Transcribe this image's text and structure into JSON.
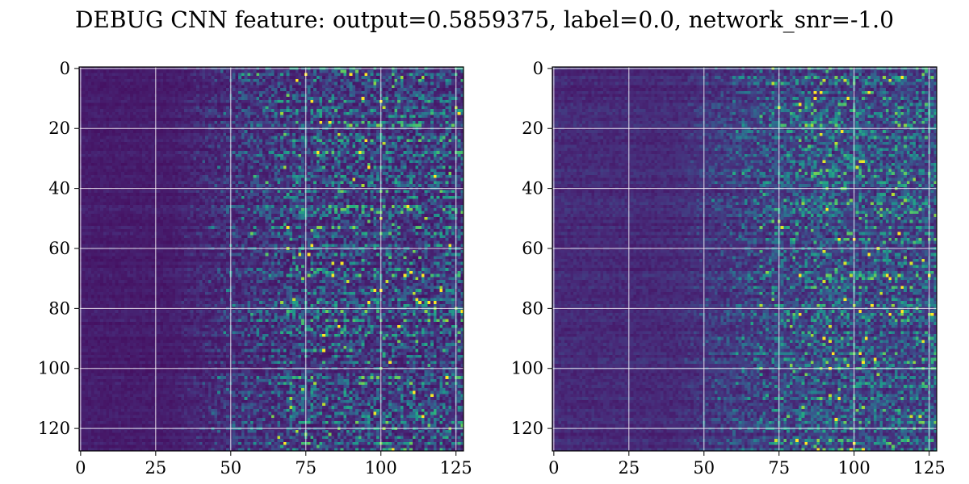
{
  "figure": {
    "title": "DEBUG CNN feature: output=0.5859375, label=0.0, network_snr=-1.0"
  },
  "chart_data": [
    {
      "type": "heatmap",
      "title": "",
      "xlabel": "",
      "ylabel": "",
      "xlim": [
        -0.5,
        127.5
      ],
      "ylim": [
        127.5,
        -0.5
      ],
      "rows": 128,
      "cols": 128,
      "colormap": "viridis",
      "x_ticks": [
        0,
        25,
        50,
        75,
        100,
        125
      ],
      "x_tick_labels": [
        "0",
        "25",
        "50",
        "75",
        "100",
        "125"
      ],
      "y_ticks": [
        0,
        20,
        40,
        60,
        80,
        100,
        120
      ],
      "y_tick_labels": [
        "0",
        "20",
        "40",
        "60",
        "80",
        "100",
        "120"
      ],
      "grid": true,
      "grid_color": "#ffffff",
      "noise_onset_column": 45,
      "background_level": 0.08,
      "peak_level": 1.0
    },
    {
      "type": "heatmap",
      "title": "",
      "xlabel": "",
      "ylabel": "",
      "xlim": [
        -0.5,
        127.5
      ],
      "ylim": [
        127.5,
        -0.5
      ],
      "rows": 128,
      "cols": 128,
      "colormap": "viridis",
      "x_ticks": [
        0,
        25,
        50,
        75,
        100,
        125
      ],
      "x_tick_labels": [
        "0",
        "25",
        "50",
        "75",
        "100",
        "125"
      ],
      "y_ticks": [
        0,
        20,
        40,
        60,
        80,
        100,
        120
      ],
      "y_tick_labels": [
        "0",
        "20",
        "40",
        "60",
        "80",
        "100",
        "120"
      ],
      "grid": true,
      "grid_color": "#ffffff",
      "noise_onset_column": 55,
      "background_level": 0.12,
      "peak_level": 1.0
    }
  ]
}
